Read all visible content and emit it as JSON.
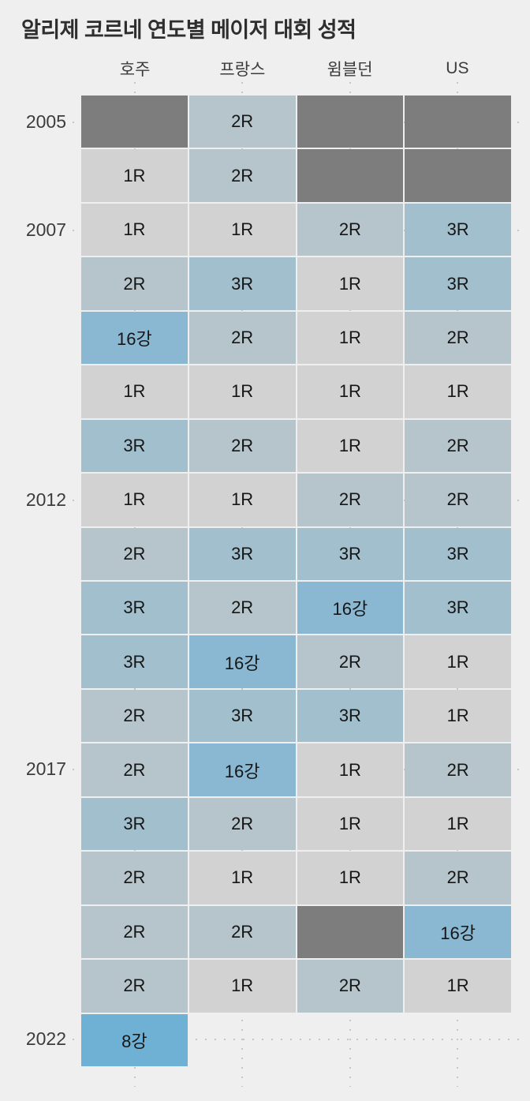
{
  "title": "알리제 코르네 연도별 메이저 대회 성적",
  "background_color": "#efefef",
  "chart_data": {
    "type": "heatmap",
    "title": "알리제 코르네 연도별 메이저 대회 성적",
    "columns": [
      "호주",
      "프랑스",
      "윔블던",
      "US"
    ],
    "year_ticks_shown": [
      "2005",
      "2007",
      "2012",
      "2017",
      "2022"
    ],
    "no_data_marker": "-",
    "palette": {
      "-": "#7d7d7d",
      "1R": "#d2d2d2",
      "2R": "#b6c4cb",
      "3R": "#a2bfcd",
      "16강": "#8ab8d3",
      "8강": "#6fb1d4"
    },
    "gridline_color": "#c6c6c6",
    "cell_text_color": "#161616",
    "label_color": "#3c3c3c",
    "rows": [
      {
        "year": "2005",
        "results": [
          "-",
          "2R",
          "-",
          "-"
        ]
      },
      {
        "year": "2006",
        "results": [
          "1R",
          "2R",
          "-",
          "-"
        ]
      },
      {
        "year": "2007",
        "results": [
          "1R",
          "1R",
          "2R",
          "3R"
        ]
      },
      {
        "year": "2008",
        "results": [
          "2R",
          "3R",
          "1R",
          "3R"
        ]
      },
      {
        "year": "2009",
        "results": [
          "16강",
          "2R",
          "1R",
          "2R"
        ]
      },
      {
        "year": "2010",
        "results": [
          "1R",
          "1R",
          "1R",
          "1R"
        ]
      },
      {
        "year": "2011",
        "results": [
          "3R",
          "2R",
          "1R",
          "2R"
        ]
      },
      {
        "year": "2012",
        "results": [
          "1R",
          "1R",
          "2R",
          "2R"
        ]
      },
      {
        "year": "2013",
        "results": [
          "2R",
          "3R",
          "3R",
          "3R"
        ]
      },
      {
        "year": "2014",
        "results": [
          "3R",
          "2R",
          "16강",
          "3R"
        ]
      },
      {
        "year": "2015",
        "results": [
          "3R",
          "16강",
          "2R",
          "1R"
        ]
      },
      {
        "year": "2016",
        "results": [
          "2R",
          "3R",
          "3R",
          "1R"
        ]
      },
      {
        "year": "2017",
        "results": [
          "2R",
          "16강",
          "1R",
          "2R"
        ]
      },
      {
        "year": "2018",
        "results": [
          "3R",
          "2R",
          "1R",
          "1R"
        ]
      },
      {
        "year": "2019",
        "results": [
          "2R",
          "1R",
          "1R",
          "2R"
        ]
      },
      {
        "year": "2020",
        "results": [
          "2R",
          "2R",
          "-",
          "16강"
        ]
      },
      {
        "year": "2021",
        "results": [
          "2R",
          "1R",
          "2R",
          "1R"
        ]
      },
      {
        "year": "2022",
        "results": [
          "8강",
          null,
          null,
          null
        ]
      }
    ]
  }
}
